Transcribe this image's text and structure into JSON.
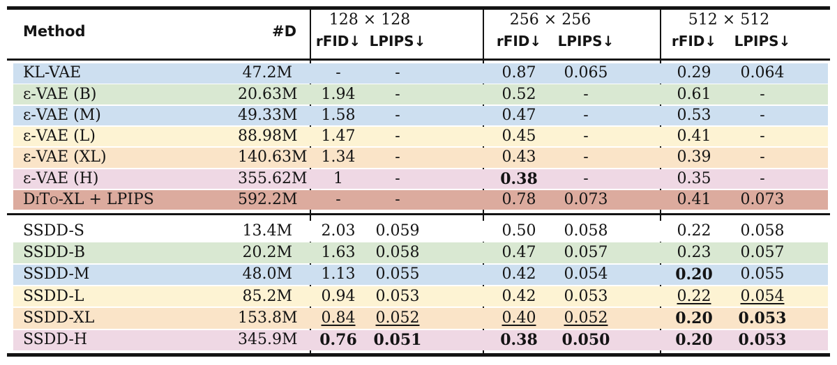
{
  "header": {
    "method": "Method",
    "params": "#D",
    "groups": [
      {
        "title": "128 × 128",
        "rfid": "rFID↓",
        "lpips": "LPIPS↓"
      },
      {
        "title": "256 × 256",
        "rfid": "rFID↓",
        "lpips": "LPIPS↓"
      },
      {
        "title": "512 × 512",
        "rfid": "rFID↓",
        "lpips": "LPIPS↓"
      }
    ]
  },
  "colors": {
    "blue": "#cddff0",
    "green": "#d9e8d2",
    "yellow": "#fdf3d3",
    "orange": "#fae4c8",
    "pink": "#efd8e4",
    "salmon": "#dcab9e",
    "white": "#ffffff",
    "ink": "#131313"
  },
  "sections": [
    {
      "rows": [
        {
          "label": "KL-VAE",
          "smallcaps": false,
          "color": "blue",
          "params": "47.2M",
          "values": [
            "-",
            "-",
            "0.87",
            "0.065",
            "0.29",
            "0.064"
          ],
          "styles": [
            "",
            "",
            "",
            "",
            "",
            ""
          ]
        },
        {
          "label": "ε-VAE (B)",
          "smallcaps": false,
          "color": "green",
          "params": "20.63M",
          "values": [
            "1.94",
            "-",
            "0.52",
            "-",
            "0.61",
            "-"
          ],
          "styles": [
            "",
            "",
            "",
            "",
            "",
            ""
          ]
        },
        {
          "label": "ε-VAE (M)",
          "smallcaps": false,
          "color": "blue",
          "params": "49.33M",
          "values": [
            "1.58",
            "-",
            "0.47",
            "-",
            "0.53",
            "-"
          ],
          "styles": [
            "",
            "",
            "",
            "",
            "",
            ""
          ]
        },
        {
          "label": "ε-VAE (L)",
          "smallcaps": false,
          "color": "yellow",
          "params": "88.98M",
          "values": [
            "1.47",
            "-",
            "0.45",
            "-",
            "0.41",
            "-"
          ],
          "styles": [
            "",
            "",
            "",
            "",
            "",
            ""
          ]
        },
        {
          "label": "ε-VAE (XL)",
          "smallcaps": false,
          "color": "orange",
          "params": "140.63M",
          "values": [
            "1.34",
            "-",
            "0.43",
            "-",
            "0.39",
            "-"
          ],
          "styles": [
            "",
            "",
            "",
            "",
            "",
            ""
          ]
        },
        {
          "label": "ε-VAE (H)",
          "smallcaps": false,
          "color": "pink",
          "params": "355.62M",
          "values": [
            "1",
            "-",
            "0.38",
            "-",
            "0.35",
            "-"
          ],
          "styles": [
            "",
            "",
            "b",
            "",
            "",
            ""
          ]
        },
        {
          "label": "DiTo-XL + LPIPS",
          "smallcaps": true,
          "color": "salmon",
          "params": "592.2M",
          "values": [
            "-",
            "-",
            "0.78",
            "0.073",
            "0.41",
            "0.073"
          ],
          "styles": [
            "",
            "",
            "",
            "",
            "",
            ""
          ]
        }
      ]
    },
    {
      "rows": [
        {
          "label": "SSDD-S",
          "smallcaps": false,
          "color": "white",
          "params": "13.4M",
          "values": [
            "2.03",
            "0.059",
            "0.50",
            "0.058",
            "0.22",
            "0.058"
          ],
          "styles": [
            "",
            "",
            "",
            "",
            "",
            ""
          ]
        },
        {
          "label": "SSDD-B",
          "smallcaps": false,
          "color": "green",
          "params": "20.2M",
          "values": [
            "1.63",
            "0.058",
            "0.47",
            "0.057",
            "0.23",
            "0.057"
          ],
          "styles": [
            "",
            "",
            "",
            "",
            "",
            ""
          ]
        },
        {
          "label": "SSDD-M",
          "smallcaps": false,
          "color": "blue",
          "params": "48.0M",
          "values": [
            "1.13",
            "0.055",
            "0.42",
            "0.054",
            "0.20",
            "0.055"
          ],
          "styles": [
            "",
            "",
            "",
            "",
            "b",
            ""
          ]
        },
        {
          "label": "SSDD-L",
          "smallcaps": false,
          "color": "yellow",
          "params": "85.2M",
          "values": [
            "0.94",
            "0.053",
            "0.42",
            "0.053",
            "0.22",
            "0.054"
          ],
          "styles": [
            "",
            "",
            "",
            "",
            "u",
            "u"
          ]
        },
        {
          "label": "SSDD-XL",
          "smallcaps": false,
          "color": "orange",
          "params": "153.8M",
          "values": [
            "0.84",
            "0.052",
            "0.40",
            "0.052",
            "0.20",
            "0.053"
          ],
          "styles": [
            "u",
            "u",
            "u",
            "u",
            "b",
            "b"
          ]
        },
        {
          "label": "SSDD-H",
          "smallcaps": false,
          "color": "pink",
          "params": "345.9M",
          "values": [
            "0.76",
            "0.051",
            "0.38",
            "0.050",
            "0.20",
            "0.053"
          ],
          "styles": [
            "b",
            "b",
            "b",
            "b",
            "b",
            "b"
          ]
        }
      ]
    }
  ]
}
